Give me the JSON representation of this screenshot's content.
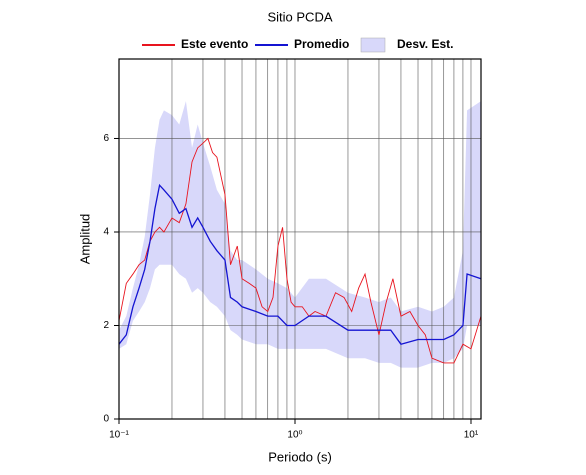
{
  "chart_data": {
    "type": "line",
    "title": "Sitio PCDA",
    "xlabel": "Periodo (s)",
    "ylabel": "Amplitud",
    "xlog": true,
    "grid": true,
    "xlim": [
      0.1,
      11.4
    ],
    "ylim": [
      0,
      7.7
    ],
    "xticks": [
      {
        "value": 0.1,
        "label": "10⁻¹"
      },
      {
        "value": 1,
        "label": "10⁰"
      },
      {
        "value": 10,
        "label": "10¹"
      }
    ],
    "xgrid": [
      0.2,
      0.3,
      0.4,
      0.5,
      0.6,
      0.7,
      0.8,
      0.9,
      2,
      3,
      4,
      5,
      6,
      7,
      8,
      9
    ],
    "yticks": [
      0,
      2,
      4,
      6
    ],
    "series": [
      {
        "name": "Este evento",
        "color": "#e8141e",
        "x": [
          0.1,
          0.11,
          0.12,
          0.13,
          0.14,
          0.15,
          0.16,
          0.17,
          0.18,
          0.2,
          0.22,
          0.24,
          0.26,
          0.28,
          0.3,
          0.32,
          0.34,
          0.36,
          0.4,
          0.43,
          0.47,
          0.5,
          0.55,
          0.6,
          0.65,
          0.7,
          0.75,
          0.8,
          0.85,
          0.9,
          0.95,
          1.0,
          1.1,
          1.2,
          1.3,
          1.5,
          1.7,
          1.9,
          2.1,
          2.3,
          2.5,
          2.7,
          3.0,
          3.3,
          3.6,
          4.0,
          4.5,
          5.0,
          5.5,
          6.0,
          7.0,
          8.0,
          9.0,
          10,
          11.4
        ],
        "values": [
          2.1,
          2.9,
          3.1,
          3.3,
          3.4,
          3.8,
          4.0,
          4.1,
          4.0,
          4.3,
          4.2,
          4.6,
          5.5,
          5.8,
          5.9,
          6.0,
          5.7,
          5.6,
          4.8,
          3.3,
          3.7,
          3.0,
          2.9,
          2.8,
          2.4,
          2.3,
          2.6,
          3.7,
          4.1,
          3.0,
          2.5,
          2.4,
          2.4,
          2.2,
          2.3,
          2.2,
          2.7,
          2.6,
          2.3,
          2.8,
          3.1,
          2.5,
          1.8,
          2.5,
          3.0,
          2.2,
          2.3,
          2.0,
          1.8,
          1.3,
          1.2,
          1.2,
          1.6,
          1.5,
          2.2
        ]
      },
      {
        "name": "Promedio",
        "color": "#1414d2",
        "x": [
          0.1,
          0.11,
          0.12,
          0.13,
          0.14,
          0.15,
          0.16,
          0.17,
          0.18,
          0.2,
          0.22,
          0.24,
          0.26,
          0.28,
          0.3,
          0.33,
          0.36,
          0.4,
          0.43,
          0.47,
          0.5,
          0.6,
          0.7,
          0.8,
          0.9,
          1.0,
          1.2,
          1.5,
          2.0,
          2.5,
          3.0,
          3.5,
          4.0,
          5.0,
          6.0,
          7.0,
          8.0,
          9.0,
          9.5,
          11.4
        ],
        "values": [
          1.6,
          1.8,
          2.4,
          2.8,
          3.2,
          3.8,
          4.5,
          5.0,
          4.9,
          4.7,
          4.4,
          4.5,
          4.1,
          4.3,
          4.1,
          3.8,
          3.6,
          3.4,
          2.6,
          2.5,
          2.4,
          2.3,
          2.2,
          2.2,
          2.0,
          2.0,
          2.2,
          2.2,
          1.9,
          1.9,
          1.9,
          1.9,
          1.6,
          1.7,
          1.7,
          1.7,
          1.8,
          2.0,
          3.1,
          3.0
        ]
      },
      {
        "name": "Desv. Est.",
        "color": "#d8d8fa",
        "band": true,
        "x": [
          0.1,
          0.11,
          0.12,
          0.13,
          0.14,
          0.15,
          0.16,
          0.17,
          0.18,
          0.2,
          0.22,
          0.24,
          0.26,
          0.28,
          0.3,
          0.33,
          0.36,
          0.4,
          0.43,
          0.47,
          0.5,
          0.6,
          0.7,
          0.8,
          0.9,
          1.0,
          1.2,
          1.5,
          2.0,
          2.5,
          3.0,
          3.5,
          4.0,
          5.0,
          6.0,
          7.0,
          8.0,
          9.0,
          9.5,
          11.4
        ],
        "lower": [
          1.5,
          1.6,
          2.1,
          2.3,
          2.5,
          2.8,
          3.2,
          3.3,
          3.3,
          3.3,
          3.1,
          3.0,
          2.7,
          2.8,
          2.7,
          2.5,
          2.4,
          2.2,
          1.9,
          1.8,
          1.7,
          1.6,
          1.6,
          1.5,
          1.5,
          1.5,
          1.5,
          1.5,
          1.3,
          1.3,
          1.2,
          1.2,
          1.1,
          1.1,
          1.2,
          1.2,
          1.3,
          1.5,
          2.0,
          2.0
        ],
        "upper": [
          1.9,
          2.2,
          2.8,
          3.3,
          3.9,
          4.8,
          5.8,
          6.4,
          6.6,
          6.5,
          6.3,
          6.8,
          5.8,
          6.3,
          5.9,
          5.4,
          4.9,
          4.6,
          3.6,
          3.4,
          3.4,
          3.2,
          3.0,
          2.9,
          2.8,
          2.6,
          3.0,
          3.0,
          2.7,
          2.6,
          2.5,
          2.6,
          2.3,
          2.4,
          2.3,
          2.4,
          2.6,
          3.6,
          6.6,
          6.8
        ]
      }
    ]
  }
}
